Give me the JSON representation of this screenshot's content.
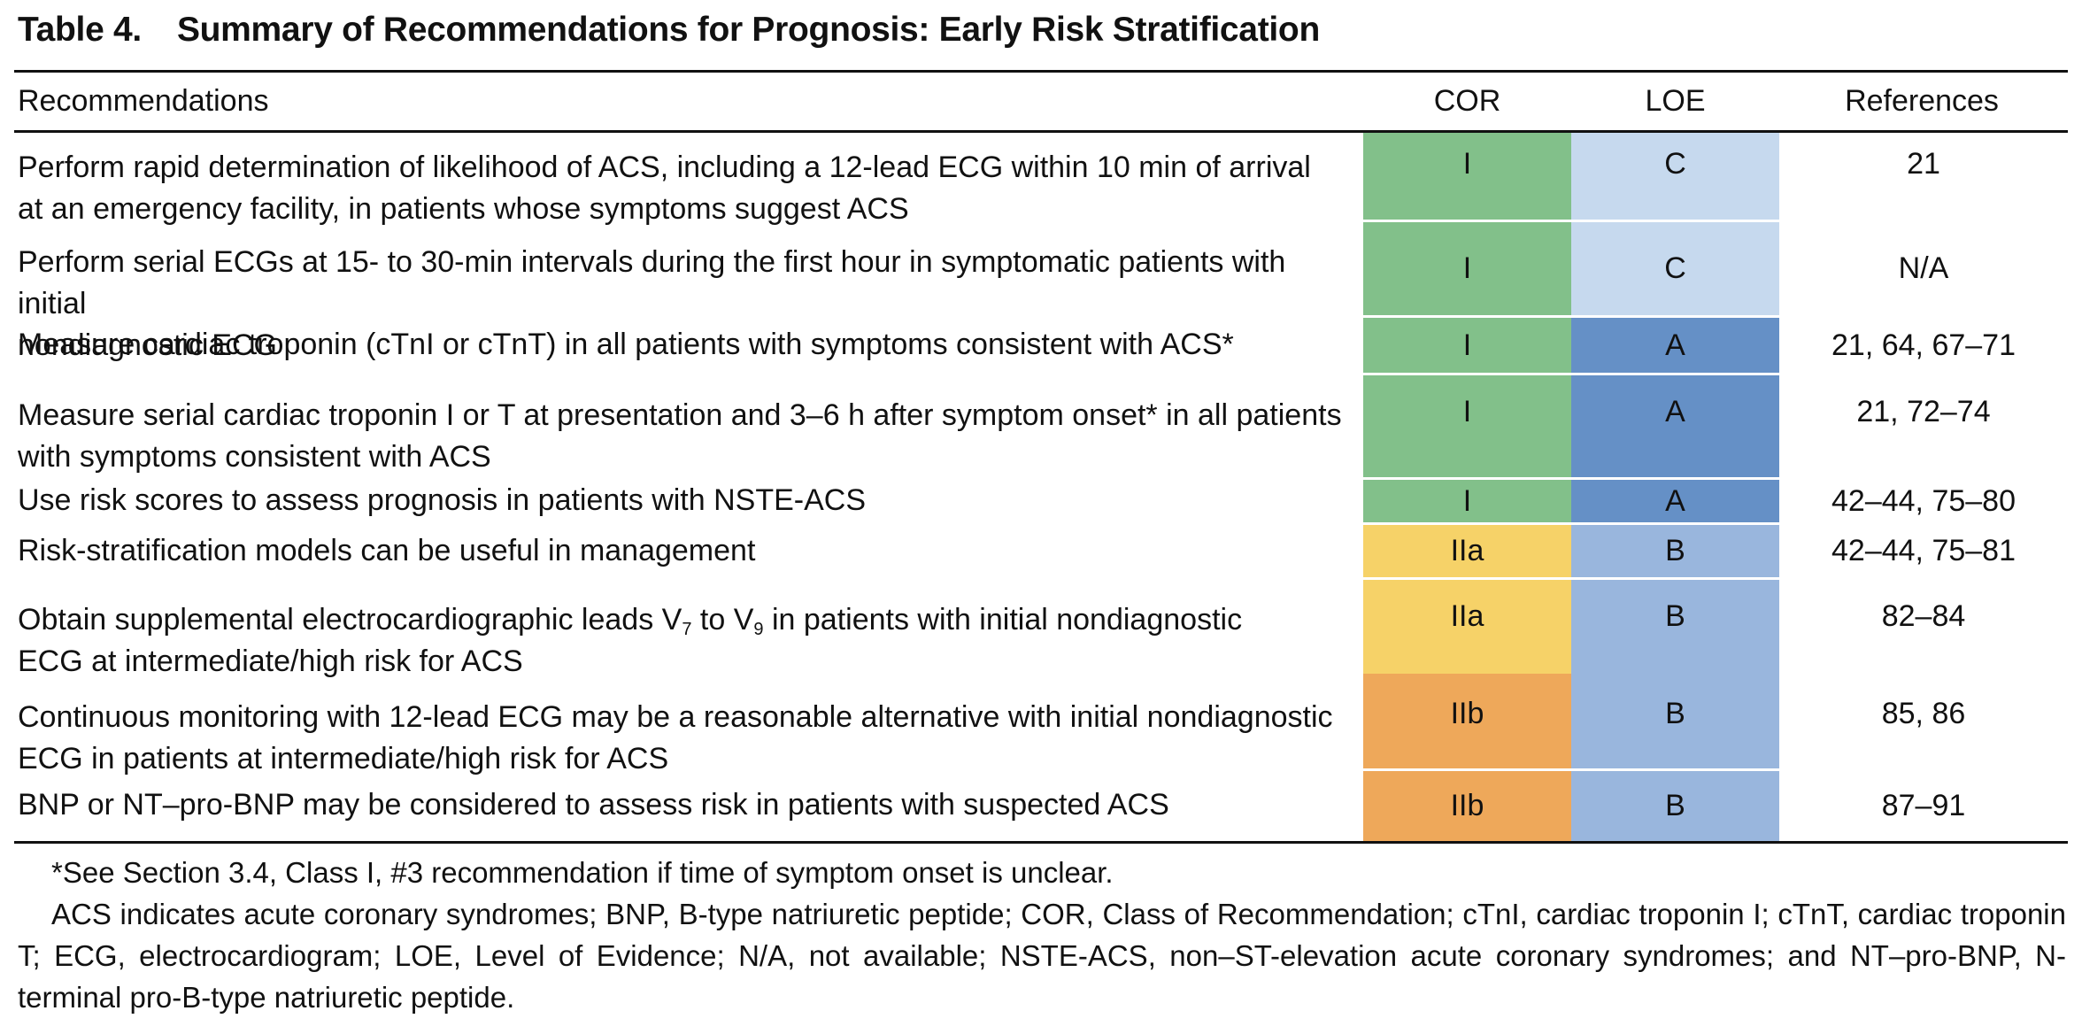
{
  "table": {
    "number": "Table 4.",
    "title": "Summary of Recommendations for Prognosis: Early Risk Stratification",
    "columns": {
      "recommendations": "Recommendations",
      "cor": "COR",
      "loe": "LOE",
      "references": "References"
    },
    "rows": [
      {
        "line1": "Perform rapid determination of likelihood of ACS, including a 12-lead ECG within 10 min of arrival",
        "line2": "at an emergency facility, in patients whose symptoms suggest ACS",
        "cor": "I",
        "loe": "C",
        "references": "21"
      },
      {
        "line1": "Perform serial ECGs at 15- to 30-min intervals during the first hour in symptomatic patients with initial",
        "line2": "nondiagnostic ECG",
        "cor": "I",
        "loe": "C",
        "references": "N/A"
      },
      {
        "line1": "Measure cardiac troponin (cTnI or cTnT) in all patients with symptoms consistent with ACS*",
        "cor": "I",
        "loe": "A",
        "references": "21, 64, 67–71"
      },
      {
        "line1": "Measure serial cardiac troponin I or T at presentation and 3–6 h after symptom onset* in all patients",
        "line2": "with symptoms consistent with ACS",
        "cor": "I",
        "loe": "A",
        "references": "21, 72–74"
      },
      {
        "line1": "Use risk scores to assess prognosis in patients with NSTE-ACS",
        "cor": "I",
        "loe": "A",
        "references": "42–44, 75–80"
      },
      {
        "line1": "Risk-stratification models can be useful in management",
        "cor": "IIa",
        "loe": "B",
        "references": "42–44, 75–81"
      },
      {
        "line1_part1": "Obtain supplemental electrocardiographic leads V",
        "line1_sub1": "7",
        "line1_part2": " to V",
        "line1_sub2": "9",
        "line1_part3": " in patients with initial nondiagnostic",
        "line2": "ECG at intermediate/high risk for ACS",
        "cor": "IIa",
        "loe": "B",
        "references": "82–84"
      },
      {
        "line1": "Continuous monitoring with 12-lead ECG may be a reasonable alternative with initial nondiagnostic",
        "line2": "ECG in patients at intermediate/high risk for ACS",
        "cor": "IIb",
        "loe": "B",
        "references": "85, 86"
      },
      {
        "line1": "BNP or NT–pro-BNP may be considered to assess risk in patients with suspected ACS",
        "cor": "IIb",
        "loe": "B",
        "references": "87–91"
      }
    ],
    "footnotes": {
      "asterisk": "*See Section 3.4, Class I, #3 recommendation if time of symptom onset is unclear.",
      "abbreviations": "ACS indicates acute coronary syndromes; BNP, B-type natriuretic peptide; COR, Class of Recommendation; cTnI, cardiac troponin I; cTnT, cardiac troponin T; ECG, electrocardiogram; LOE, Level of Evidence; N/A, not available; NSTE-ACS, non–ST-elevation acute coronary syndromes; and NT–pro-BNP, N-terminal pro-B-type natriuretic peptide."
    }
  },
  "colors": {
    "cor_I": "#82c08a",
    "cor_IIa": "#f6d268",
    "cor_IIb": "#eea85a",
    "loe_A": "#6590c6",
    "loe_B": "#99b6dd",
    "loe_C": "#c6d9ee"
  }
}
